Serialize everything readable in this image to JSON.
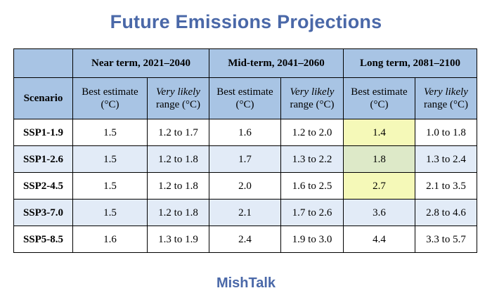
{
  "title": "Future Emissions Projections",
  "footer": "MishTalk",
  "table": {
    "group_headers": [
      "Near term, 2021–2040",
      "Mid-term, 2041–2060",
      "Long term, 2081–2100"
    ],
    "scenario_header": "Scenario",
    "best_estimate": [
      "Best estimate",
      "(°C)"
    ],
    "likely_range": [
      "Very likely",
      "range (°C)"
    ],
    "rows": [
      {
        "scenario": "SSP1-1.9",
        "cells": [
          "1.5",
          "1.2 to 1.7",
          "1.6",
          "1.2 to 2.0",
          "1.4",
          "1.0 to 1.8"
        ]
      },
      {
        "scenario": "SSP1-2.6",
        "cells": [
          "1.5",
          "1.2 to 1.8",
          "1.7",
          "1.3 to 2.2",
          "1.8",
          "1.3 to 2.4"
        ]
      },
      {
        "scenario": "SSP2-4.5",
        "cells": [
          "1.5",
          "1.2 to 1.8",
          "2.0",
          "1.6 to 2.5",
          "2.7",
          "2.1 to 3.5"
        ]
      },
      {
        "scenario": "SSP3-7.0",
        "cells": [
          "1.5",
          "1.2 to 1.8",
          "2.1",
          "1.7 to 2.6",
          "3.6",
          "2.8 to 4.6"
        ]
      },
      {
        "scenario": "SSP5-8.5",
        "cells": [
          "1.6",
          "1.3 to 1.9",
          "2.4",
          "1.9 to 3.0",
          "4.4",
          "3.3 to 5.7"
        ]
      }
    ]
  }
}
